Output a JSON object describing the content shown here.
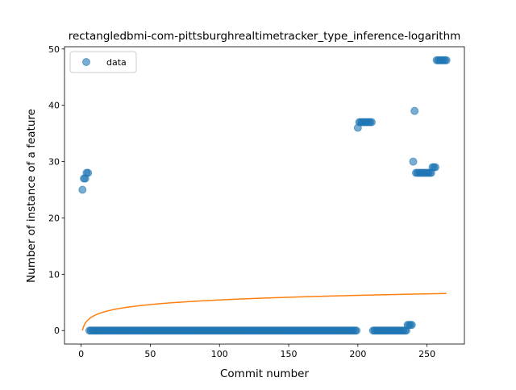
{
  "chart_data": {
    "type": "scatter",
    "title": "rectangledbmi-com-pittsburghrealtimetracker_type_inference-logarithm",
    "xlabel": "Commit number",
    "ylabel": "Number of instance of a feature",
    "xlim": [
      -12,
      277
    ],
    "ylim": [
      -2.4,
      50.4
    ],
    "x_ticks": [
      0,
      50,
      100,
      150,
      200,
      250
    ],
    "y_ticks": [
      0,
      10,
      20,
      30,
      40,
      50
    ],
    "legend": {
      "entries": [
        "data"
      ],
      "placement": "top-left"
    },
    "grid": false,
    "colors": {
      "data": "#1f77b4",
      "fit": "#ff7f0e"
    },
    "series": [
      {
        "name": "data",
        "type": "scatter",
        "segments": [
          {
            "x_start": 1,
            "x_end": 1,
            "y": 25
          },
          {
            "x_start": 2,
            "x_end": 3,
            "y": 27
          },
          {
            "x_start": 4,
            "x_end": 5,
            "y": 28
          },
          {
            "x_start": 6,
            "x_end": 199,
            "y": 0
          },
          {
            "x_start": 200,
            "x_end": 200,
            "y": 36
          },
          {
            "x_start": 201,
            "x_end": 210,
            "y": 37
          },
          {
            "x_start": 211,
            "x_end": 235,
            "y": 0
          },
          {
            "x_start": 236,
            "x_end": 239,
            "y": 1
          },
          {
            "x_start": 240,
            "x_end": 240,
            "y": 30
          },
          {
            "x_start": 241,
            "x_end": 241,
            "y": 39
          },
          {
            "x_start": 242,
            "x_end": 253,
            "y": 28
          },
          {
            "x_start": 254,
            "x_end": 256,
            "y": 29
          },
          {
            "x_start": 257,
            "x_end": 264,
            "y": 48
          }
        ]
      },
      {
        "type": "line",
        "model": "logarithmic",
        "formula": {
          "a": 0.0,
          "b": 1.18
        },
        "x_range": [
          1,
          264
        ]
      }
    ]
  }
}
